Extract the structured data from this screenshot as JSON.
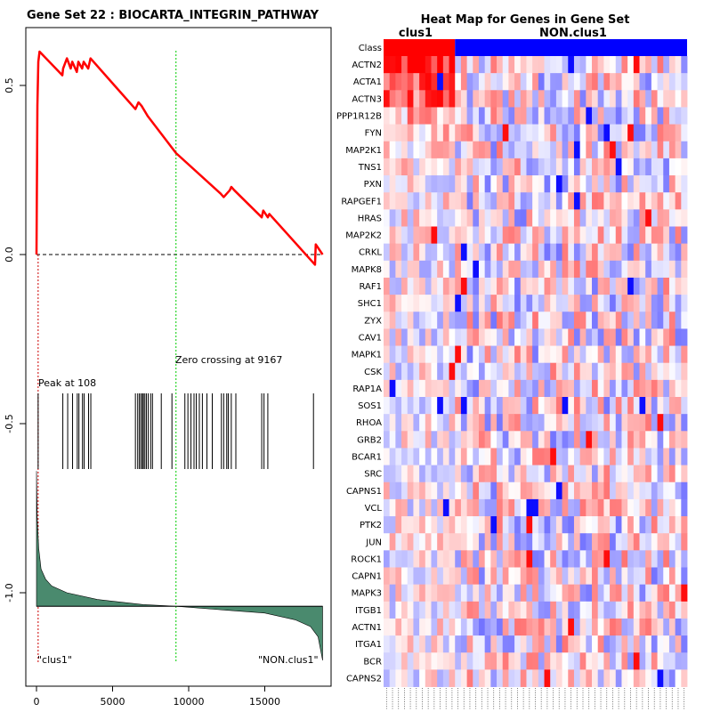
{
  "left_panel": {
    "title": "Gene Set  22 : BIOCARTA_INTEGRIN_PATHWAY",
    "peak_label": "Peak at 108",
    "zero_label": "Zero crossing at 9167",
    "left_class_label": "\"clus1\"",
    "right_class_label": "\"NON.clus1\""
  },
  "right_panel": {
    "title": "Heat Map for Genes in Gene Set",
    "class_row_label": "Class",
    "group1_label": "clus1",
    "group2_label": "NON.clus1"
  },
  "colors": {
    "es_line": "#ff0000",
    "zero_line": "#00cc00",
    "peak_line": "#cc0000",
    "ranked_fill": "#4a8a6e",
    "class1": "#ff0000",
    "class2": "#0000ff"
  },
  "chart_data": [
    {
      "type": "line",
      "title": "Gene Set  22 : BIOCARTA_INTEGRIN_PATHWAY",
      "xlabel": "",
      "ylabel": "",
      "xlim": [
        -500,
        19000
      ],
      "ylim": [
        -1.2,
        0.65
      ],
      "x_ticks": [
        0,
        5000,
        10000,
        15000
      ],
      "y_ticks": [
        0.5,
        0.0,
        -0.5,
        -1.0
      ],
      "x_tick_labels": [
        "0",
        "5000",
        "10000",
        "15000"
      ],
      "y_tick_labels": [
        "0.5",
        "0.0",
        "-0.5",
        "-1.0"
      ],
      "enrichment_score_curve": {
        "x": [
          0,
          60,
          120,
          200,
          1700,
          1750,
          2000,
          2250,
          2350,
          2650,
          2750,
          3000,
          3100,
          3400,
          3550,
          6500,
          6700,
          6900,
          7300,
          9167,
          12100,
          12300,
          12700,
          12800,
          13000,
          14800,
          14900,
          15200,
          15300,
          18300,
          18350,
          18800
        ],
        "y": [
          0.0,
          0.44,
          0.57,
          0.6,
          0.53,
          0.55,
          0.58,
          0.55,
          0.57,
          0.54,
          0.57,
          0.55,
          0.57,
          0.55,
          0.58,
          0.43,
          0.45,
          0.44,
          0.41,
          0.3,
          0.18,
          0.17,
          0.19,
          0.2,
          0.19,
          0.11,
          0.13,
          0.11,
          0.12,
          -0.03,
          0.03,
          0.0
        ]
      },
      "hit_positions": [
        108,
        1730,
        2050,
        2370,
        2680,
        2790,
        3020,
        3130,
        3420,
        3570,
        6500,
        6650,
        6760,
        6860,
        6960,
        7020,
        7120,
        7220,
        7340,
        7500,
        7620,
        8200,
        8900,
        9750,
        9950,
        10150,
        10350,
        10500,
        10700,
        10900,
        11200,
        11550,
        12150,
        12300,
        12500,
        12600,
        12800,
        13100,
        14800,
        14950,
        15200,
        18200
      ],
      "peak_position": 108,
      "zero_crossing": 9167,
      "ranked_metric_profile": {
        "x": [
          0,
          50,
          150,
          300,
          600,
          1000,
          2000,
          4000,
          7000,
          9167,
          12000,
          15000,
          17000,
          18000,
          18500,
          18800
        ],
        "y": [
          -0.64,
          -0.78,
          -0.87,
          -0.93,
          -0.96,
          -0.98,
          -1.0,
          -1.02,
          -1.035,
          -1.04,
          -1.05,
          -1.06,
          -1.08,
          -1.1,
          -1.13,
          -1.2
        ]
      }
    },
    {
      "type": "heatmap",
      "title": "Heat Map for Genes in Gene Set",
      "class_row_label": "Class",
      "group_labels": [
        "clus1",
        "NON.clus1"
      ],
      "n_group1_samples": 12,
      "n_group2_samples": 39,
      "rows": [
        "ACTN2",
        "ACTA1",
        "ACTN3",
        "PPP1R12B",
        "FYN",
        "MAP2K1",
        "TNS1",
        "PXN",
        "RAPGEF1",
        "HRAS",
        "MAP2K2",
        "CRKL",
        "MAPK8",
        "RAF1",
        "SHC1",
        "ZYX",
        "CAV1",
        "MAPK1",
        "CSK",
        "RAP1A",
        "SOS1",
        "RHOA",
        "GRB2",
        "BCAR1",
        "SRC",
        "CAPNS1",
        "VCL",
        "PTK2",
        "JUN",
        "ROCK1",
        "CAPN1",
        "MAPK3",
        "ITGB1",
        "ACTN1",
        "ITGA1",
        "BCR",
        "CAPNS2"
      ],
      "top_row_enrichment": [
        0.85,
        0.75,
        0.6,
        0.3,
        0.15,
        0.15,
        0.1,
        0.05,
        0.05,
        0.05,
        0.05,
        0.05,
        0.0,
        0.0,
        0.0,
        0.0,
        0.0,
        0.0,
        0.0,
        0.0,
        0.0,
        0.0,
        0.0,
        0.0,
        0.0,
        0.0,
        0.0,
        0.0,
        0.0,
        0.0,
        0.0,
        0.0,
        0.0,
        0.0,
        0.0,
        0.0,
        0.0
      ]
    }
  ]
}
